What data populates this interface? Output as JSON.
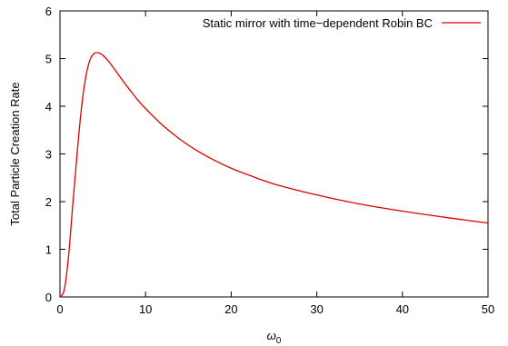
{
  "chart_data": {
    "type": "line",
    "xlabel": "ω",
    "xlabel_subscript": "0",
    "ylabel": "Total Particle Creation Rate",
    "xlim": [
      0,
      50
    ],
    "ylim": [
      0,
      6
    ],
    "xticks": [
      0,
      10,
      20,
      30,
      40,
      50
    ],
    "yticks": [
      0,
      1,
      2,
      3,
      4,
      5,
      6
    ],
    "grid": false,
    "legend_position": "top-right",
    "series": [
      {
        "name": "Static mirror with time−dependent Robin BC",
        "color": "#e00000",
        "x": [
          0,
          0.5,
          1,
          1.5,
          2,
          2.5,
          3,
          3.5,
          4,
          4.5,
          5,
          5.5,
          6,
          7,
          8,
          9,
          10,
          12,
          14,
          16,
          18,
          20,
          22,
          25,
          30,
          35,
          40,
          45,
          50
        ],
        "y": [
          0,
          0.15,
          0.85,
          1.95,
          3.0,
          3.95,
          4.6,
          4.97,
          5.11,
          5.12,
          5.07,
          4.98,
          4.87,
          4.62,
          4.38,
          4.15,
          3.95,
          3.6,
          3.31,
          3.07,
          2.87,
          2.7,
          2.56,
          2.37,
          2.14,
          1.95,
          1.8,
          1.67,
          1.55
        ]
      }
    ]
  }
}
